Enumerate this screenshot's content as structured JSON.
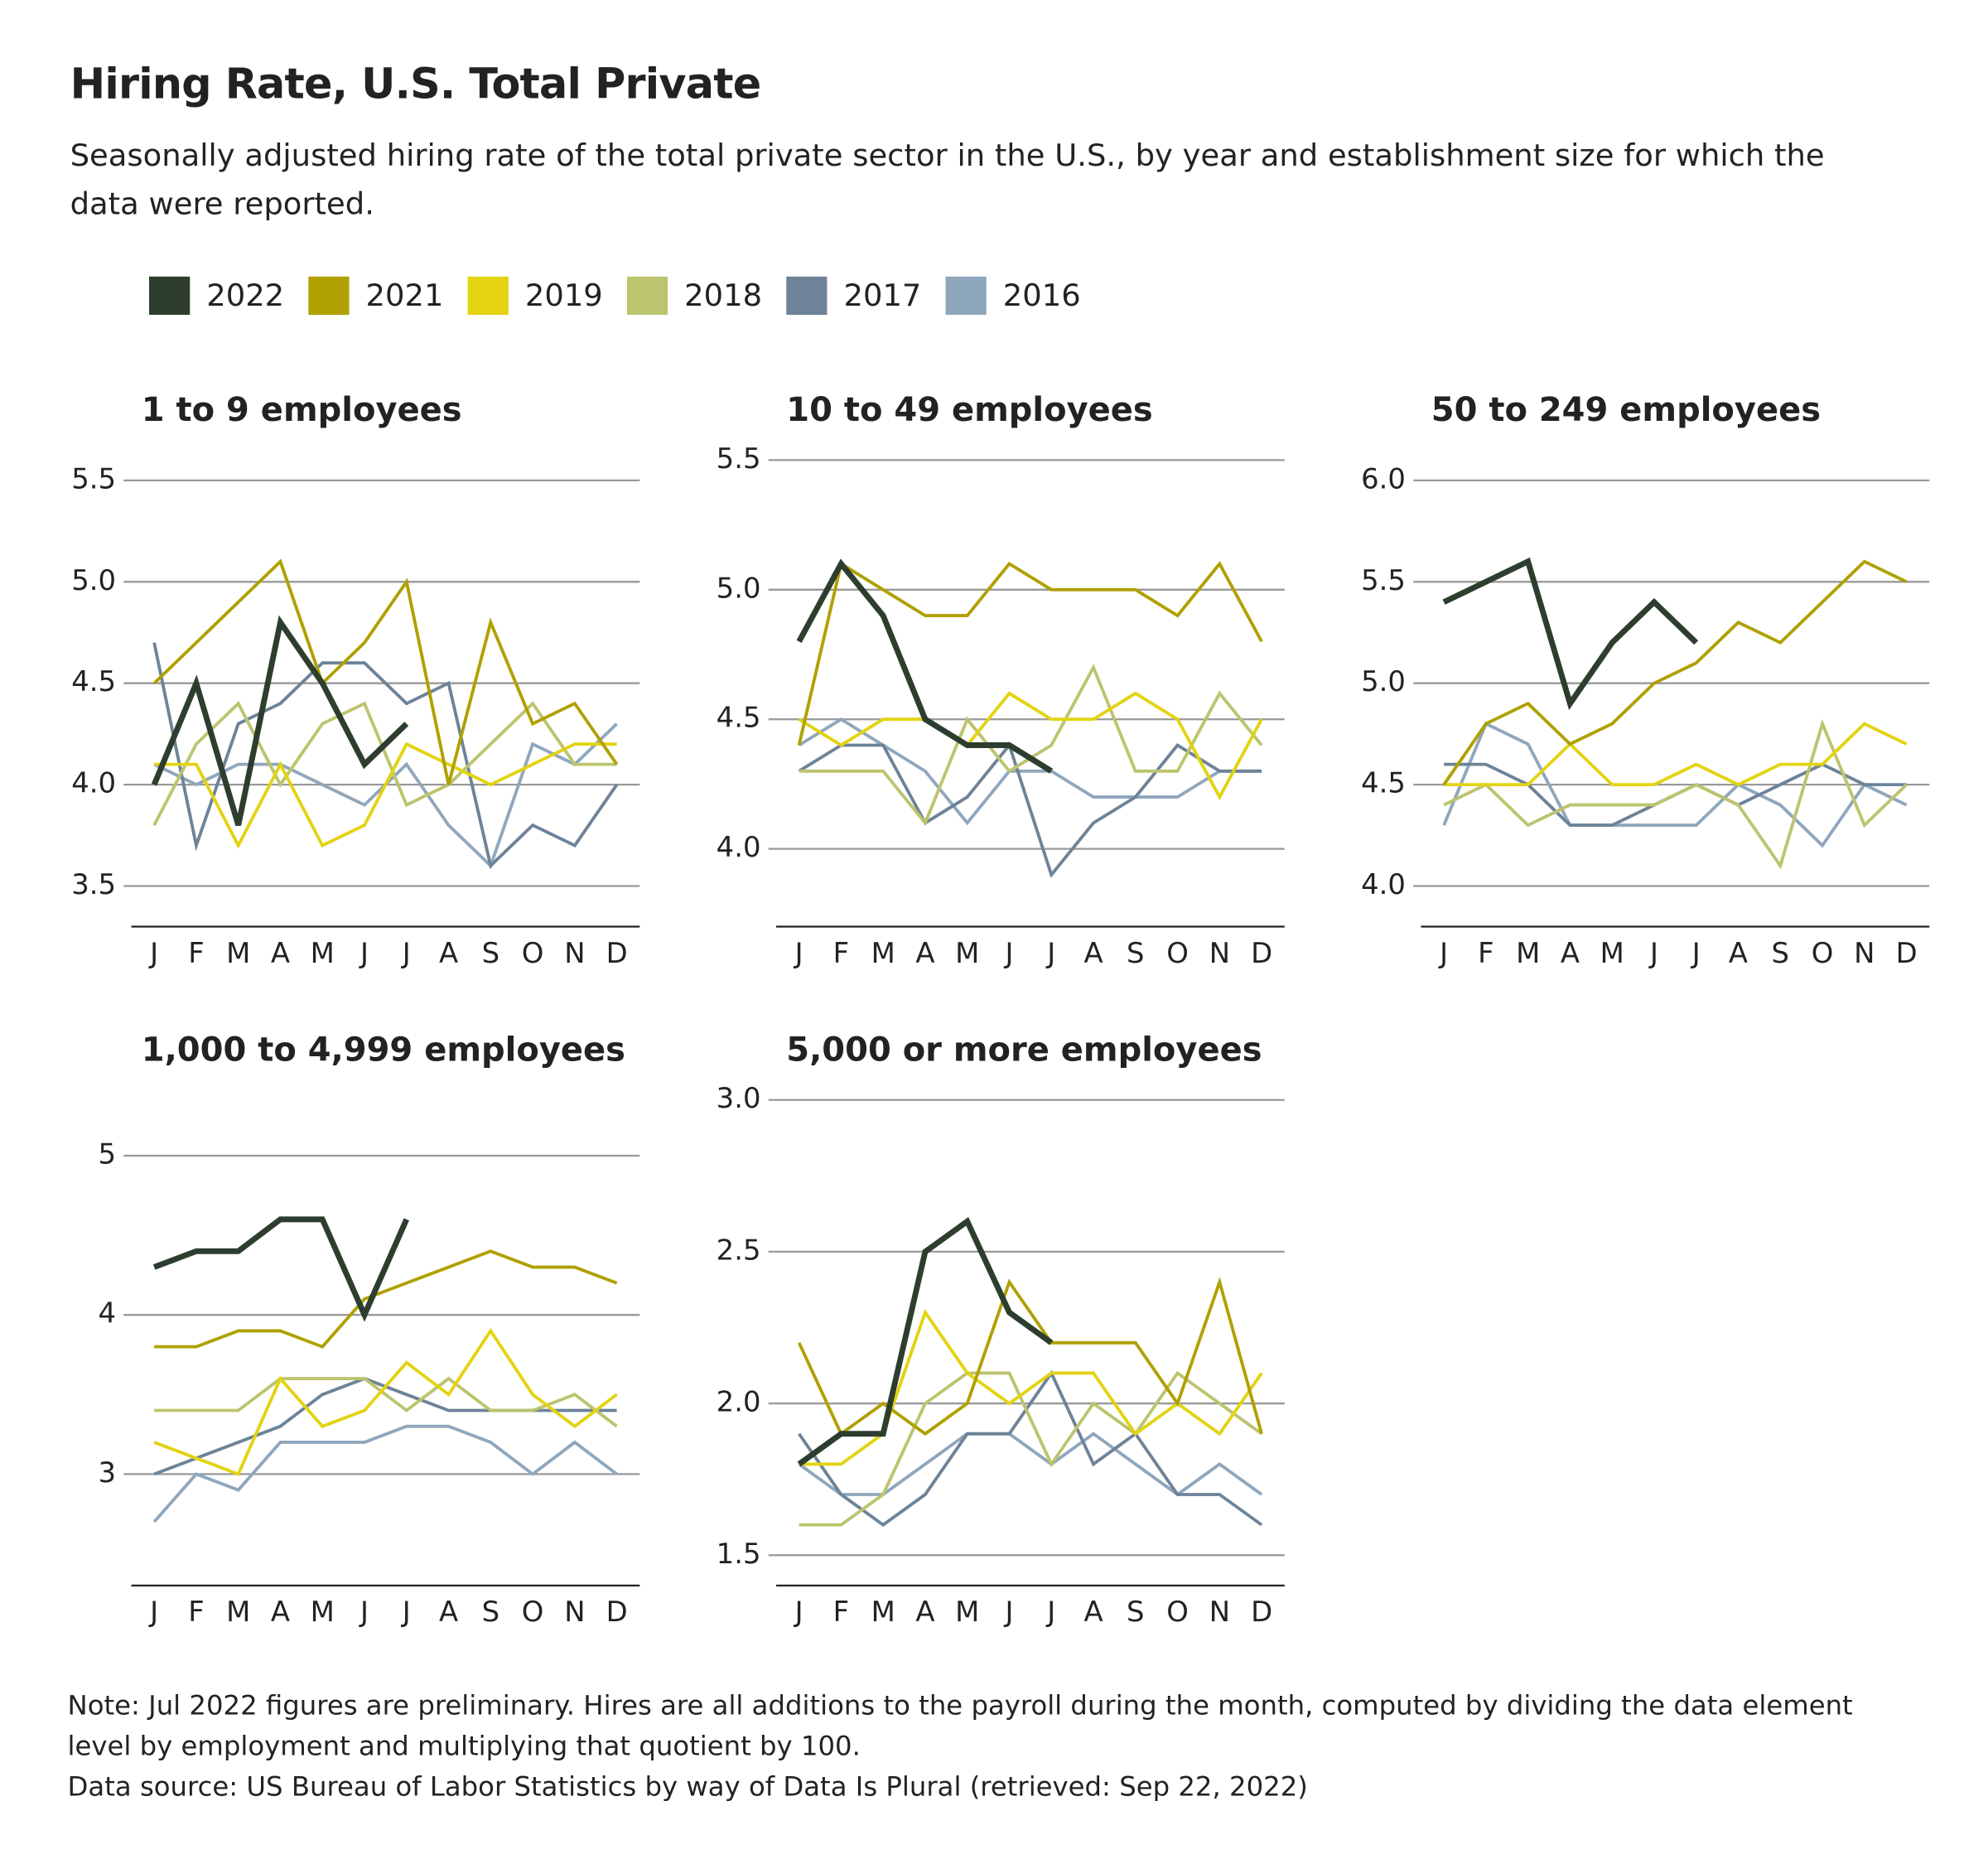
{
  "title": "Hiring Rate, U.S. Total Private",
  "subtitle": "Seasonally adjusted hiring rate of the total private sector in the U.S., by year and establishment size for which the data were reported.",
  "legend": [
    {
      "name": "2022",
      "color": "#2d3e2e"
    },
    {
      "name": "2021",
      "color": "#b0a000"
    },
    {
      "name": "2019",
      "color": "#e3d311"
    },
    {
      "name": "2018",
      "color": "#bcc46e"
    },
    {
      "name": "2017",
      "color": "#6e8398"
    },
    {
      "name": "2016",
      "color": "#8fa7bd"
    }
  ],
  "note": "Note: Jul 2022 figures are preliminary. Hires are all additions to the payroll during the month, computed by dividing the data element level by employment and multiplying that quotient by 100.",
  "source": "Data source: US Bureau of Labor Statistics by way of Data Is Plural (retrieved: Sep 22, 2022)",
  "chart_data": [
    {
      "type": "line",
      "title": "1 to 9 employees",
      "categories": [
        "J",
        "F",
        "M",
        "A",
        "M",
        "J",
        "J",
        "A",
        "S",
        "O",
        "N",
        "D"
      ],
      "ylim": [
        3.3,
        5.6
      ],
      "yticks": [
        3.5,
        {
          "value": 4,
          "label": "4.0"
        },
        4.5,
        {
          "value": 5,
          "label": "5.0"
        },
        5.5
      ],
      "series": [
        {
          "values": [
            4.0,
            4.5,
            3.8,
            4.8,
            4.5,
            4.1,
            4.3,
            null,
            null,
            null,
            null,
            null
          ]
        },
        {
          "values": [
            4.5,
            4.7,
            4.9,
            5.1,
            4.5,
            4.7,
            5.0,
            4.0,
            4.8,
            4.3,
            4.4,
            4.1
          ]
        },
        {
          "values": [
            4.1,
            4.1,
            3.7,
            4.1,
            3.7,
            3.8,
            4.2,
            4.1,
            4.0,
            4.1,
            4.2,
            4.2
          ]
        },
        {
          "values": [
            3.8,
            4.2,
            4.4,
            4.0,
            4.3,
            4.4,
            3.9,
            4.0,
            4.2,
            4.4,
            4.1,
            4.1
          ]
        },
        {
          "values": [
            4.7,
            3.7,
            4.3,
            4.4,
            4.6,
            4.6,
            4.4,
            4.5,
            3.6,
            3.8,
            3.7,
            4.0
          ]
        },
        {
          "values": [
            4.1,
            4.0,
            4.1,
            4.1,
            4.0,
            3.9,
            4.1,
            3.8,
            3.6,
            4.2,
            4.1,
            4.3
          ]
        }
      ]
    },
    {
      "type": "line",
      "title": "10 to 49 employees",
      "categories": [
        "J",
        "F",
        "M",
        "A",
        "M",
        "J",
        "J",
        "A",
        "S",
        "O",
        "N",
        "D"
      ],
      "ylim": [
        3.7,
        5.5
      ],
      "yticks": [
        {
          "value": 4,
          "label": "4.0"
        },
        4.5,
        {
          "value": 5,
          "label": "5.0"
        },
        5.5
      ],
      "series": [
        {
          "values": [
            4.8,
            5.1,
            4.9,
            4.5,
            4.4,
            4.4,
            4.3,
            null,
            null,
            null,
            null,
            null
          ]
        },
        {
          "values": [
            4.4,
            5.1,
            5.0,
            4.9,
            4.9,
            5.1,
            5.0,
            5.0,
            5.0,
            4.9,
            5.1,
            4.8
          ]
        },
        {
          "values": [
            4.5,
            4.4,
            4.5,
            4.5,
            4.4,
            4.6,
            4.5,
            4.5,
            4.6,
            4.5,
            4.2,
            4.5
          ]
        },
        {
          "values": [
            4.3,
            4.3,
            4.3,
            4.1,
            4.5,
            4.3,
            4.4,
            4.7,
            4.3,
            4.3,
            4.6,
            4.4
          ]
        },
        {
          "values": [
            4.3,
            4.4,
            4.4,
            4.1,
            4.2,
            4.4,
            3.9,
            4.1,
            4.2,
            4.4,
            4.3,
            4.3
          ]
        },
        {
          "values": [
            4.4,
            4.5,
            4.4,
            4.3,
            4.1,
            4.3,
            4.3,
            4.2,
            4.2,
            4.2,
            4.3,
            4.3
          ]
        }
      ]
    },
    {
      "type": "line",
      "title": "50 to 249 employees",
      "categories": [
        "J",
        "F",
        "M",
        "A",
        "M",
        "J",
        "J",
        "A",
        "S",
        "O",
        "N",
        "D"
      ],
      "ylim": [
        3.8,
        6.1
      ],
      "yticks": [
        {
          "value": 4,
          "label": "4.0"
        },
        4.5,
        {
          "value": 5,
          "label": "5.0"
        },
        5.5,
        {
          "value": 6,
          "label": "6.0"
        }
      ],
      "series": [
        {
          "values": [
            5.4,
            5.5,
            5.6,
            4.9,
            5.2,
            5.4,
            5.2,
            null,
            null,
            null,
            null,
            null
          ]
        },
        {
          "values": [
            4.5,
            4.8,
            4.9,
            4.7,
            4.8,
            5.0,
            5.1,
            5.3,
            5.2,
            5.4,
            5.6,
            5.5
          ]
        },
        {
          "values": [
            4.5,
            4.5,
            4.5,
            4.7,
            4.5,
            4.5,
            4.6,
            4.5,
            4.6,
            4.6,
            4.8,
            4.7
          ]
        },
        {
          "values": [
            4.4,
            4.5,
            4.3,
            4.4,
            4.4,
            4.4,
            4.5,
            4.4,
            4.1,
            4.8,
            4.3,
            4.5
          ]
        },
        {
          "values": [
            4.6,
            4.6,
            4.5,
            4.3,
            4.3,
            4.4,
            4.5,
            4.4,
            4.5,
            4.6,
            4.5,
            4.5
          ]
        },
        {
          "values": [
            4.3,
            4.8,
            4.7,
            4.3,
            4.3,
            4.3,
            4.3,
            4.5,
            4.4,
            4.2,
            4.5,
            4.4
          ]
        }
      ]
    },
    {
      "type": "line",
      "title": "1,000 to 4,999 employees",
      "categories": [
        "J",
        "F",
        "M",
        "A",
        "M",
        "J",
        "J",
        "A",
        "S",
        "O",
        "N",
        "D"
      ],
      "ylim": [
        2.3,
        5.35
      ],
      "yticks": [
        3,
        4,
        5
      ],
      "series": [
        {
          "values": [
            4.3,
            4.4,
            4.4,
            4.6,
            4.6,
            4.0,
            4.6,
            null,
            null,
            null,
            null,
            null
          ]
        },
        {
          "values": [
            3.8,
            3.8,
            3.9,
            3.9,
            3.8,
            4.1,
            4.2,
            4.3,
            4.4,
            4.3,
            4.3,
            4.2
          ]
        },
        {
          "values": [
            3.2,
            3.1,
            3.0,
            3.6,
            3.3,
            3.4,
            3.7,
            3.5,
            3.9,
            3.5,
            3.3,
            3.5
          ]
        },
        {
          "values": [
            3.4,
            3.4,
            3.4,
            3.6,
            3.6,
            3.6,
            3.4,
            3.6,
            3.4,
            3.4,
            3.5,
            3.3
          ]
        },
        {
          "values": [
            3.0,
            3.1,
            3.2,
            3.3,
            3.5,
            3.6,
            3.5,
            3.4,
            3.4,
            3.4,
            3.4,
            3.4
          ]
        },
        {
          "values": [
            2.7,
            3.0,
            2.9,
            3.2,
            3.2,
            3.2,
            3.3,
            3.3,
            3.2,
            3.0,
            3.2,
            3.0
          ]
        }
      ]
    },
    {
      "type": "line",
      "title": "5,000 or more employees",
      "categories": [
        "J",
        "F",
        "M",
        "A",
        "M",
        "J",
        "J",
        "A",
        "S",
        "O",
        "N",
        "D"
      ],
      "ylim": [
        1.4,
        3.0
      ],
      "yticks": [
        1.5,
        {
          "value": 2,
          "label": "2.0"
        },
        2.5,
        {
          "value": 3,
          "label": "3.0"
        }
      ],
      "series": [
        {
          "values": [
            1.8,
            1.9,
            1.9,
            2.5,
            2.6,
            2.3,
            2.2,
            null,
            null,
            null,
            null,
            null
          ]
        },
        {
          "values": [
            2.2,
            1.9,
            2.0,
            1.9,
            2.0,
            2.4,
            2.2,
            2.2,
            2.2,
            2.0,
            2.4,
            1.9
          ]
        },
        {
          "values": [
            1.8,
            1.8,
            1.9,
            2.3,
            2.1,
            2.0,
            2.1,
            2.1,
            1.9,
            2.0,
            1.9,
            2.1
          ]
        },
        {
          "values": [
            1.6,
            1.6,
            1.7,
            2.0,
            2.1,
            2.1,
            1.8,
            2.0,
            1.9,
            2.1,
            2.0,
            1.9
          ]
        },
        {
          "values": [
            1.9,
            1.7,
            1.6,
            1.7,
            1.9,
            1.9,
            2.1,
            1.8,
            1.9,
            1.7,
            1.7,
            1.6
          ]
        },
        {
          "values": [
            1.8,
            1.7,
            1.7,
            1.8,
            1.9,
            1.9,
            1.8,
            1.9,
            1.8,
            1.7,
            1.8,
            1.7
          ]
        }
      ]
    }
  ]
}
